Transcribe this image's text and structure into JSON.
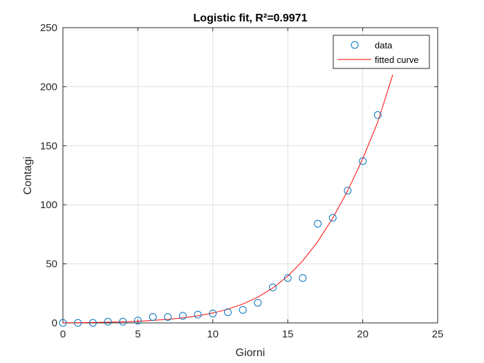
{
  "chart_data": {
    "type": "scatter",
    "title": "Logistic fit, R²=0.9971",
    "xlabel": "Giorni",
    "ylabel": "Contagi",
    "xlim": [
      0,
      25
    ],
    "ylim": [
      0,
      250
    ],
    "xticks": [
      "0",
      "5",
      "10",
      "15",
      "20",
      "25"
    ],
    "yticks": [
      "0",
      "50",
      "100",
      "150",
      "200",
      "250"
    ],
    "grid": true,
    "legend_position": "top-right",
    "series": [
      {
        "name": "data",
        "kind": "markers",
        "marker": "circle",
        "color": "#0072BD",
        "x": [
          0,
          1,
          2,
          3,
          4,
          5,
          6,
          7,
          8,
          9,
          10,
          11,
          12,
          13,
          14,
          15,
          16,
          17,
          18,
          19,
          20,
          21
        ],
        "y": [
          0,
          0,
          0,
          1,
          1,
          2,
          5,
          5,
          6,
          7,
          8,
          9,
          11,
          17,
          30,
          38,
          38,
          84,
          89,
          112,
          137,
          176
        ]
      },
      {
        "name": "fitted curve",
        "kind": "line",
        "color": "#FF0000",
        "x": [
          0,
          1,
          2,
          3,
          4,
          5,
          6,
          7,
          8,
          9,
          10,
          11,
          12,
          13,
          14,
          15,
          16,
          17,
          18,
          19,
          20,
          21,
          22
        ],
        "y": [
          0.1,
          0.2,
          0.35,
          0.6,
          0.9,
          1.4,
          2.1,
          3.0,
          4.3,
          6.0,
          8.3,
          11.6,
          16.0,
          21.8,
          29.5,
          39.6,
          52.6,
          68.9,
          88.7,
          112.0,
          139.0,
          170.0,
          210.0
        ]
      }
    ]
  }
}
